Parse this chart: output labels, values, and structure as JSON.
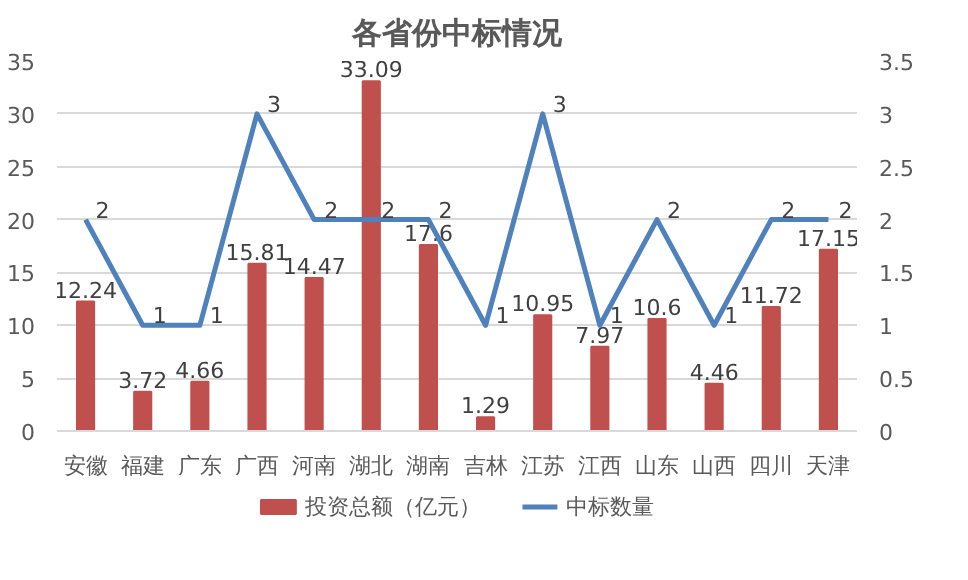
{
  "chart_data": {
    "type": "bar",
    "title": "各省份中标情况",
    "categories": [
      "安徽",
      "福建",
      "广东",
      "广西",
      "河南",
      "湖北",
      "湖南",
      "吉林",
      "江苏",
      "江西",
      "山东",
      "山西",
      "四川",
      "天津"
    ],
    "series": [
      {
        "name": "投资总额（亿元）",
        "color": "#c0504d",
        "values": [
          12.24,
          3.72,
          4.66,
          15.81,
          14.47,
          33.09,
          17.6,
          1.29,
          10.95,
          7.97,
          10.6,
          4.46,
          11.72,
          17.15
        ]
      },
      {
        "name": "中标数量",
        "color": "#4f81bd",
        "type": "line",
        "axis": "y2",
        "values": [
          2,
          1,
          1,
          3,
          2,
          2,
          2,
          1,
          3,
          1,
          2,
          1,
          2,
          2
        ]
      }
    ],
    "ylim": [
      0,
      35
    ],
    "yticks": [
      0,
      5,
      10,
      15,
      20,
      25,
      30,
      35
    ],
    "y2lim": [
      0,
      3.5
    ],
    "y2ticks": [
      0,
      0.5,
      1,
      1.5,
      2,
      2.5,
      3,
      3.5
    ],
    "grid": "y",
    "legend": "bottom",
    "data_labels": true,
    "marker": "none",
    "line_style": "solid"
  }
}
